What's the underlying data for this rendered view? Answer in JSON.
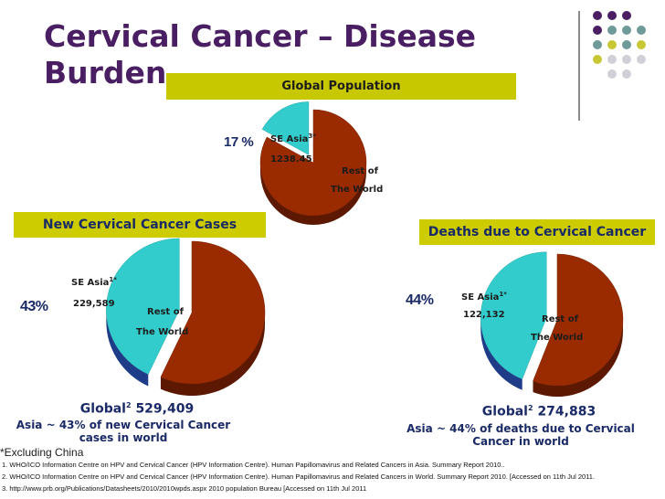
{
  "slide": {
    "title": "Cervical Cancer – Disease Burden",
    "exclusion_note": "*Excluding China",
    "references": [
      "1. WHO/ICO Information Centre on HPV and Cervical Cancer (HPV Information Centre). Human Papillomavirus and Related Cancers in Asia. Summary Report 2010..",
      "2. WHO/ICO Information Centre on HPV and Cervical Cancer (HPV Information Centre). Human Papillomavirus and Related Cancers in World. Summary Report 2010. [Accessed on 11th Jul 2011.",
      "3. http://www.prb.org/Publications/Datasheets/2010/2010wpds.aspx 2010 population Bureau [Accessed on 11th Jul 2011"
    ]
  },
  "colors": {
    "title": "#4a1e62",
    "banner": "#cccc00",
    "slice_rest": "#9a2a00",
    "slice_rest_side": "#5c1800",
    "slice_asia": "#33cccc",
    "slice_asia_side": "#1f3c88",
    "label_text": "#1c1c1c",
    "accent_dots": [
      "#4a1e62",
      "#6e9a9a",
      "#c8c834",
      "#d0d0d8"
    ]
  },
  "chart_data": [
    {
      "type": "pie",
      "title": "Global Population",
      "categories": [
        "SE Asia3*",
        "Rest of The World"
      ],
      "values": [
        17,
        83
      ],
      "asia_label": {
        "name": "SE Asia",
        "sup": "3",
        "star": "*",
        "value": "1238.45"
      },
      "rest_label": [
        "Rest of",
        "The World"
      ],
      "percent_label": "17 %"
    },
    {
      "type": "pie",
      "title": "New Cervical Cancer Cases",
      "categories": [
        "SE Asia1*",
        "Rest of The World"
      ],
      "values": [
        43,
        57
      ],
      "asia_label": {
        "name": "SE Asia",
        "sup": "1",
        "star": "*",
        "value": "229,589"
      },
      "rest_label": [
        "Rest of",
        "The World"
      ],
      "percent_label": "43%",
      "global": {
        "prefix": "Global",
        "sup": "2",
        "value": "529,409"
      },
      "note": "Asia ~ 43% of new  Cervical Cancer cases in world"
    },
    {
      "type": "pie",
      "title": "Deaths due to Cervical Cancer",
      "categories": [
        "SE Asia1*",
        "Rest of The World"
      ],
      "values": [
        44,
        56
      ],
      "asia_label": {
        "name": "SE Asia",
        "sup": "1",
        "star": "*",
        "value": "122,132"
      },
      "rest_label": [
        "Rest of",
        "The World"
      ],
      "percent_label": "44%",
      "global": {
        "prefix": "Global",
        "sup": "2",
        "value": "274,883"
      },
      "note": "Asia ~ 44% of deaths due to Cervical Cancer in world"
    }
  ]
}
